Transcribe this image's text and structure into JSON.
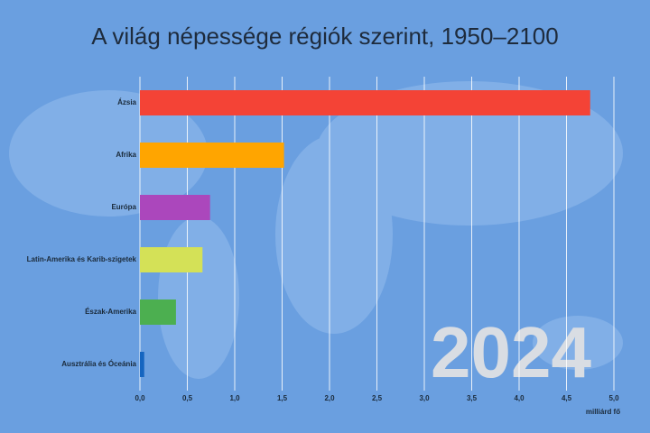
{
  "chart_data": {
    "type": "bar",
    "orientation": "horizontal",
    "title": "A világ népessége régiók szerint, 1950–2100",
    "categories": [
      "Ázsia",
      "Afrika",
      "Európa",
      "Latin-Amerika és Karib-szigetek",
      "Észak-Amerika",
      "Ausztrália és Óceánia"
    ],
    "values": [
      4.75,
      1.52,
      0.74,
      0.66,
      0.38,
      0.045
    ],
    "colors": [
      "#f44336",
      "#ffa500",
      "#ab47bc",
      "#d4e157",
      "#4caf50",
      "#1565c0"
    ],
    "xlim": [
      0,
      5.2
    ],
    "xticks": [
      {
        "value": 0,
        "label": "0,0"
      },
      {
        "value": 0.5,
        "label": "0,5"
      },
      {
        "value": 1,
        "label": "1,0"
      },
      {
        "value": 1.5,
        "label": "1,5"
      },
      {
        "value": 2,
        "label": "2,0"
      },
      {
        "value": 2.5,
        "label": "2,5"
      },
      {
        "value": 3,
        "label": "3,0"
      },
      {
        "value": 3.5,
        "label": "3,5"
      },
      {
        "value": 4,
        "label": "4,0"
      },
      {
        "value": 4.5,
        "label": "4,5"
      },
      {
        "value": 5,
        "label": "5,0"
      }
    ],
    "xlabel": "milliárd fő",
    "annotation": "2024",
    "grid": true
  }
}
